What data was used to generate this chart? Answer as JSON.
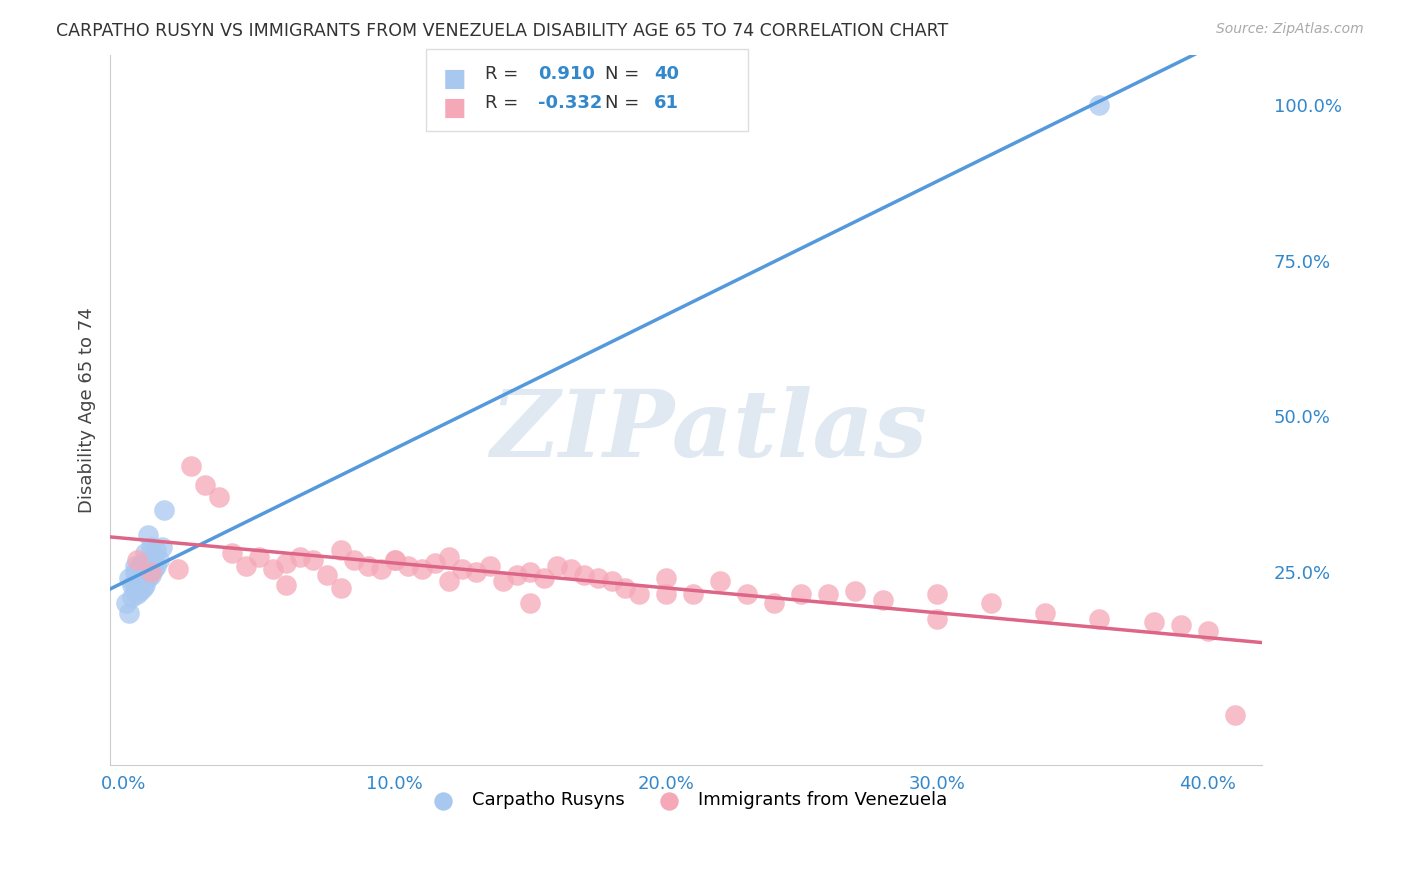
{
  "title": "CARPATHO RUSYN VS IMMIGRANTS FROM VENEZUELA DISABILITY AGE 65 TO 74 CORRELATION CHART",
  "source": "Source: ZipAtlas.com",
  "xlabel_ticks": [
    "0.0%",
    "10.0%",
    "20.0%",
    "30.0%",
    "40.0%"
  ],
  "xlabel_tick_vals": [
    0.0,
    0.1,
    0.2,
    0.3,
    0.4
  ],
  "ylabel": "Disability Age 65 to 74",
  "ylabel_right_ticks": [
    "100.0%",
    "75.0%",
    "50.0%",
    "25.0%"
  ],
  "ylabel_right_tick_vals": [
    1.0,
    0.75,
    0.5,
    0.25
  ],
  "xmin": -0.005,
  "xmax": 0.42,
  "ymin": -0.06,
  "ymax": 1.08,
  "blue_R": 0.91,
  "blue_N": 40,
  "pink_R": -0.332,
  "pink_N": 61,
  "blue_color": "#a8c8f0",
  "pink_color": "#f5a8b8",
  "blue_line_color": "#5599dd",
  "pink_line_color": "#dd6688",
  "watermark": "ZIPatlas",
  "blue_scatter_x": [
    0.001,
    0.002,
    0.002,
    0.003,
    0.003,
    0.004,
    0.004,
    0.004,
    0.005,
    0.005,
    0.005,
    0.005,
    0.006,
    0.006,
    0.006,
    0.006,
    0.006,
    0.007,
    0.007,
    0.007,
    0.007,
    0.007,
    0.008,
    0.008,
    0.008,
    0.008,
    0.009,
    0.009,
    0.009,
    0.01,
    0.01,
    0.01,
    0.011,
    0.011,
    0.012,
    0.012,
    0.013,
    0.014,
    0.015,
    0.36
  ],
  "blue_scatter_y": [
    0.2,
    0.185,
    0.24,
    0.21,
    0.23,
    0.22,
    0.25,
    0.26,
    0.215,
    0.225,
    0.235,
    0.245,
    0.22,
    0.23,
    0.24,
    0.25,
    0.26,
    0.225,
    0.235,
    0.245,
    0.255,
    0.265,
    0.23,
    0.24,
    0.25,
    0.28,
    0.24,
    0.255,
    0.31,
    0.245,
    0.265,
    0.29,
    0.255,
    0.275,
    0.26,
    0.285,
    0.27,
    0.29,
    0.35,
    1.0
  ],
  "pink_scatter_x": [
    0.005,
    0.01,
    0.02,
    0.025,
    0.03,
    0.035,
    0.04,
    0.045,
    0.05,
    0.055,
    0.06,
    0.065,
    0.07,
    0.075,
    0.08,
    0.085,
    0.09,
    0.095,
    0.1,
    0.105,
    0.11,
    0.115,
    0.12,
    0.125,
    0.13,
    0.135,
    0.14,
    0.145,
    0.15,
    0.155,
    0.16,
    0.165,
    0.17,
    0.175,
    0.18,
    0.185,
    0.19,
    0.2,
    0.21,
    0.22,
    0.23,
    0.24,
    0.26,
    0.27,
    0.28,
    0.3,
    0.32,
    0.34,
    0.36,
    0.38,
    0.39,
    0.4,
    0.41,
    0.06,
    0.08,
    0.1,
    0.12,
    0.15,
    0.2,
    0.25,
    0.3
  ],
  "pink_scatter_y": [
    0.27,
    0.25,
    0.255,
    0.42,
    0.39,
    0.37,
    0.28,
    0.26,
    0.275,
    0.255,
    0.265,
    0.275,
    0.27,
    0.245,
    0.285,
    0.27,
    0.26,
    0.255,
    0.27,
    0.26,
    0.255,
    0.265,
    0.275,
    0.255,
    0.25,
    0.26,
    0.235,
    0.245,
    0.25,
    0.24,
    0.26,
    0.255,
    0.245,
    0.24,
    0.235,
    0.225,
    0.215,
    0.24,
    0.215,
    0.235,
    0.215,
    0.2,
    0.215,
    0.22,
    0.205,
    0.215,
    0.2,
    0.185,
    0.175,
    0.17,
    0.165,
    0.155,
    0.02,
    0.23,
    0.225,
    0.27,
    0.235,
    0.2,
    0.215,
    0.215,
    0.175
  ]
}
